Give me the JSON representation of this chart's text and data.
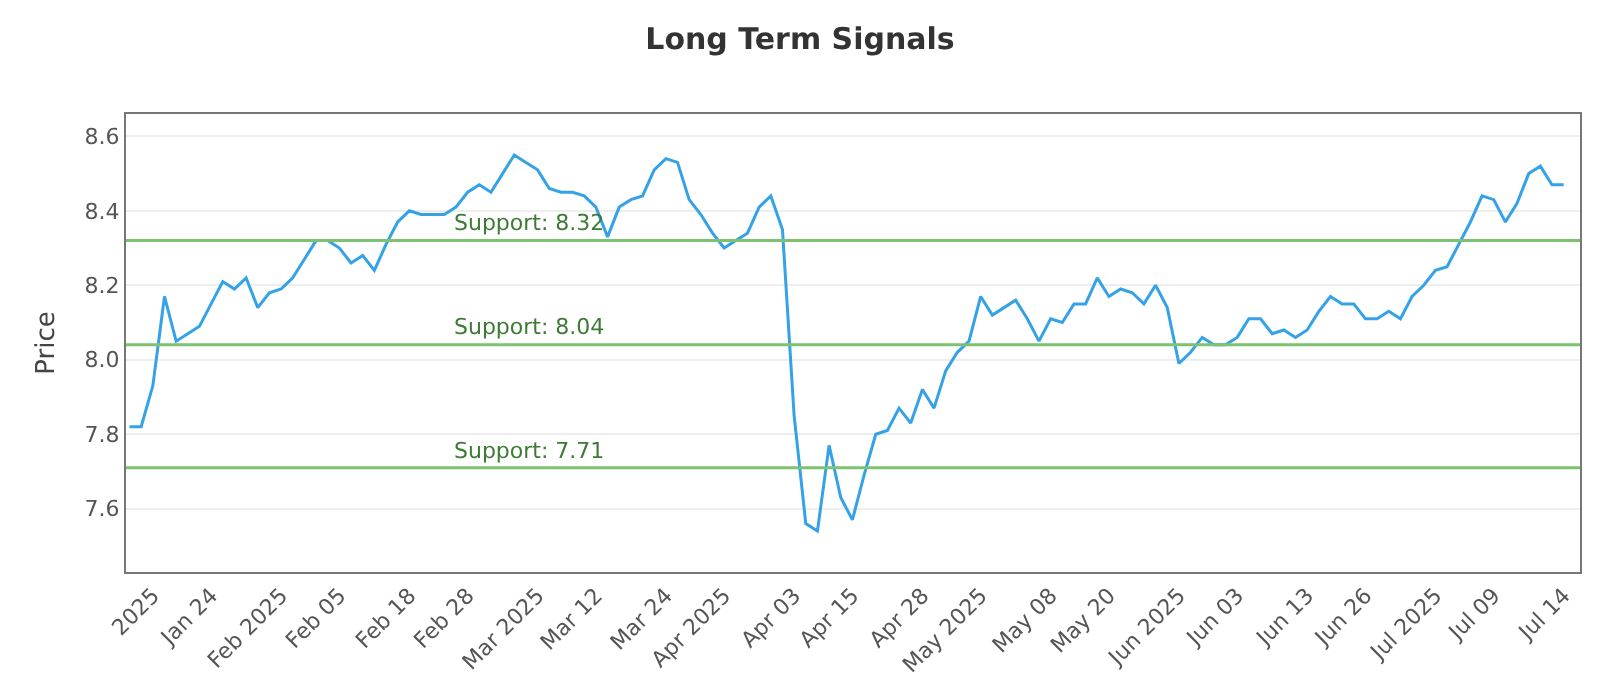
{
  "chart_data": {
    "type": "line",
    "title": "Long Term Signals",
    "ylabel": "Price",
    "categories": [
      null,
      null,
      "2025",
      null,
      null,
      null,
      null,
      "Jan 24",
      null,
      null,
      null,
      null,
      null,
      "Feb 2025",
      null,
      null,
      null,
      null,
      "Feb 05",
      null,
      null,
      null,
      null,
      null,
      "Feb 18",
      null,
      null,
      null,
      null,
      "Feb 28",
      null,
      null,
      null,
      null,
      null,
      "Mar 2025",
      null,
      null,
      null,
      null,
      "Mar 12",
      null,
      null,
      null,
      null,
      null,
      "Mar 24",
      null,
      null,
      null,
      null,
      "Apr 2025",
      null,
      null,
      null,
      null,
      null,
      "Apr 03",
      null,
      null,
      null,
      null,
      "Apr 15",
      null,
      null,
      null,
      null,
      null,
      "Apr 28",
      null,
      null,
      null,
      null,
      "May 2025",
      null,
      null,
      null,
      null,
      null,
      "May 08",
      null,
      null,
      null,
      null,
      "May 20",
      null,
      null,
      null,
      null,
      null,
      "Jun 2025",
      null,
      null,
      null,
      null,
      "Jun 03",
      null,
      null,
      null,
      null,
      null,
      "Jun 13",
      null,
      null,
      null,
      null,
      "Jun 26",
      null,
      null,
      null,
      null,
      null,
      "Jul 2025",
      null,
      null,
      null,
      null,
      "Jul 09",
      null,
      null,
      null,
      null,
      null,
      "Jul 14"
    ],
    "series": [
      {
        "color": "#35a2e8",
        "values": [
          7.82,
          7.82,
          7.93,
          8.17,
          8.05,
          8.07,
          8.09,
          8.15,
          8.21,
          8.19,
          8.22,
          8.14,
          8.18,
          8.19,
          8.22,
          8.27,
          8.32,
          8.32,
          8.3,
          8.26,
          8.28,
          8.24,
          8.31,
          8.37,
          8.4,
          8.39,
          8.39,
          8.39,
          8.41,
          8.45,
          8.47,
          8.45,
          8.5,
          8.55,
          8.53,
          8.51,
          8.46,
          8.45,
          8.45,
          8.44,
          8.41,
          8.33,
          8.41,
          8.43,
          8.44,
          8.51,
          8.54,
          8.53,
          8.43,
          8.39,
          8.34,
          8.3,
          8.32,
          8.34,
          8.41,
          8.44,
          8.35,
          7.85,
          7.56,
          7.54,
          7.77,
          7.63,
          7.57,
          7.69,
          7.8,
          7.81,
          7.87,
          7.83,
          7.92,
          7.87,
          7.97,
          8.02,
          8.05,
          8.17,
          8.12,
          8.14,
          8.16,
          8.11,
          8.05,
          8.11,
          8.1,
          8.15,
          8.15,
          8.22,
          8.17,
          8.19,
          8.18,
          8.15,
          8.2,
          8.14,
          7.99,
          8.02,
          8.06,
          8.04,
          8.04,
          8.06,
          8.11,
          8.11,
          8.07,
          8.08,
          8.06,
          8.08,
          8.13,
          8.17,
          8.15,
          8.15,
          8.11,
          8.11,
          8.13,
          8.11,
          8.17,
          8.2,
          8.24,
          8.25,
          8.31,
          8.37,
          8.44,
          8.43,
          8.37,
          8.42,
          8.5,
          8.52,
          8.47,
          8.47
        ]
      }
    ],
    "ylim": [
      7.43,
      8.66
    ],
    "yticks": [
      7.6,
      7.8,
      {
        "value": 8,
        "label": "8.0"
      },
      8.2,
      8.4,
      8.6
    ],
    "grid": "y",
    "marker": "none",
    "line_style": "solid",
    "ref_lines": [
      {
        "axis": "y",
        "value": 8.32,
        "label": "Support: 8.32",
        "color": "#7dc271"
      },
      {
        "axis": "y",
        "value": 8.04,
        "label": "Support: 8.04",
        "color": "#7dc271"
      },
      {
        "axis": "y",
        "value": 7.71,
        "label": "Support: 7.71",
        "color": "#7dc271"
      }
    ]
  }
}
